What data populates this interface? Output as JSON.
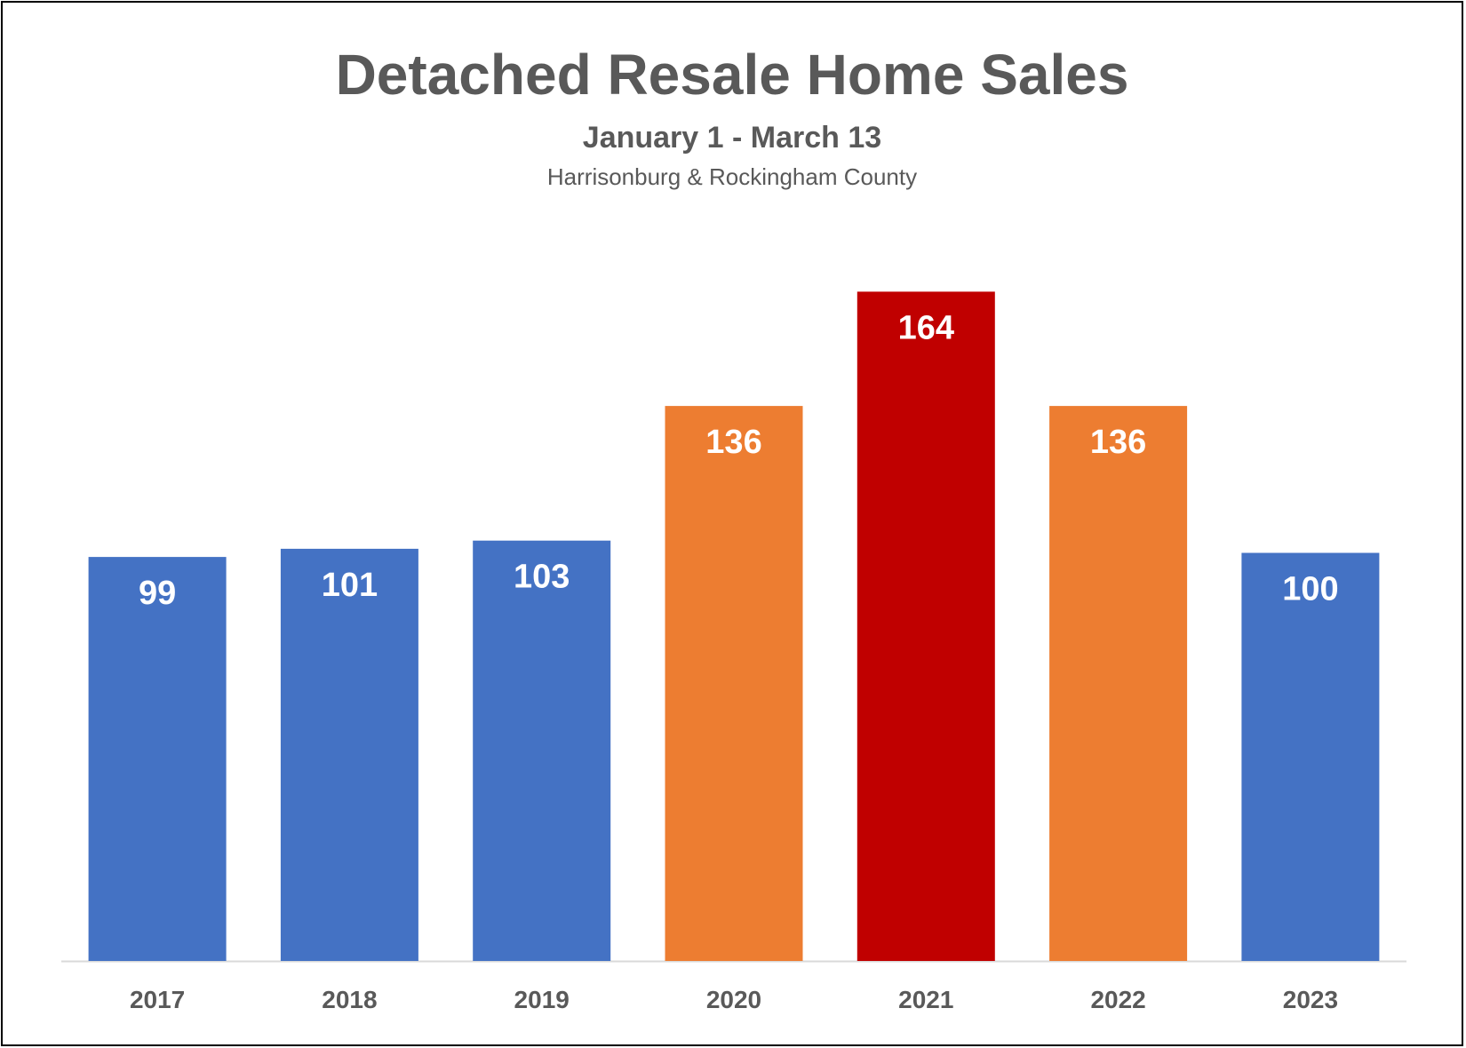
{
  "chart_data": {
    "type": "bar",
    "title": "Detached Resale Home Sales",
    "subtitle": "January 1 - March 13",
    "subtitle2": "Harrisonburg & Rockingham County",
    "categories": [
      "2017",
      "2018",
      "2019",
      "2020",
      "2021",
      "2022",
      "2023"
    ],
    "values": [
      99,
      101,
      103,
      136,
      164,
      136,
      100
    ],
    "data_labels": [
      "99",
      "101",
      "103",
      "136",
      "164",
      "136",
      "100"
    ],
    "bar_colors": [
      "#4472C4",
      "#4472C4",
      "#4472C4",
      "#ED7D31",
      "#C00000",
      "#ED7D31",
      "#4472C4"
    ],
    "ylim": [
      0,
      164
    ],
    "grid": false,
    "legend": "none",
    "colors": {
      "baseline": "#D9D9D9",
      "category_label": "#595959",
      "data_label": "#FFFFFF",
      "title": "#595959"
    }
  }
}
